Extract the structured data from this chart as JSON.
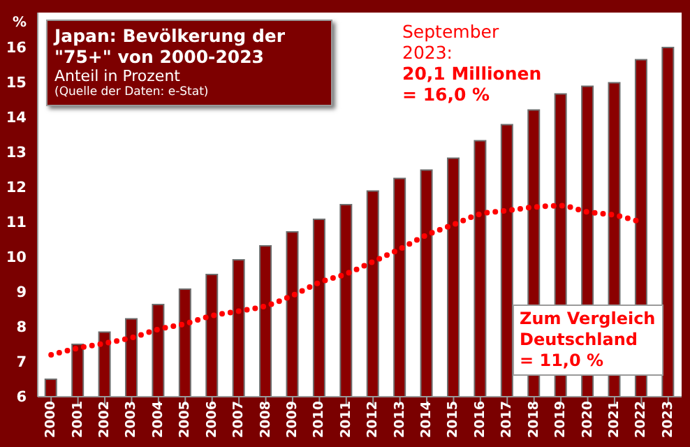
{
  "chart_data": {
    "type": "bar",
    "title": "Japan: Bevölkerung der \"75+\" von 2000-2023",
    "subtitle": "Anteil in Prozent",
    "ylabel": "%",
    "annotations": [
      "(Quelle der Daten: e-Stat)",
      "September 2023:",
      "20,1 Millionen = 16,0 %",
      "Zum Vergleich Deutschland = 11,0 %"
    ],
    "categories": [
      "2000",
      "2001",
      "2002",
      "2003",
      "2004",
      "2005",
      "2006",
      "2007",
      "2008",
      "2009",
      "2010",
      "2011",
      "2012",
      "2013",
      "2014",
      "2015",
      "2016",
      "2017",
      "2018",
      "2019",
      "2020",
      "2021",
      "2022",
      "2023"
    ],
    "series": [
      {
        "color": "#8b0000",
        "values": [
          6.5,
          7.5,
          7.85,
          8.23,
          8.64,
          9.08,
          9.5,
          9.92,
          10.32,
          10.72,
          11.08,
          11.5,
          11.89,
          12.25,
          12.49,
          12.83,
          13.33,
          13.79,
          14.21,
          14.67,
          14.89,
          14.99,
          15.65,
          16.0
        ]
      },
      {
        "type": "line",
        "color": "#ff0000",
        "values": [
          7.2,
          7.39,
          7.53,
          7.69,
          7.93,
          8.09,
          8.32,
          8.45,
          8.6,
          8.9,
          9.27,
          9.52,
          9.87,
          10.23,
          10.63,
          10.93,
          11.23,
          11.33,
          11.43,
          11.47,
          11.29,
          11.2,
          11.0,
          null
        ]
      }
    ],
    "ylim": [
      6,
      17
    ],
    "yticks": [
      6,
      7,
      8,
      9,
      10,
      11,
      12,
      13,
      14,
      15,
      16
    ],
    "grid": false,
    "legend": false,
    "line_style": "dotted",
    "marker": "none"
  }
}
